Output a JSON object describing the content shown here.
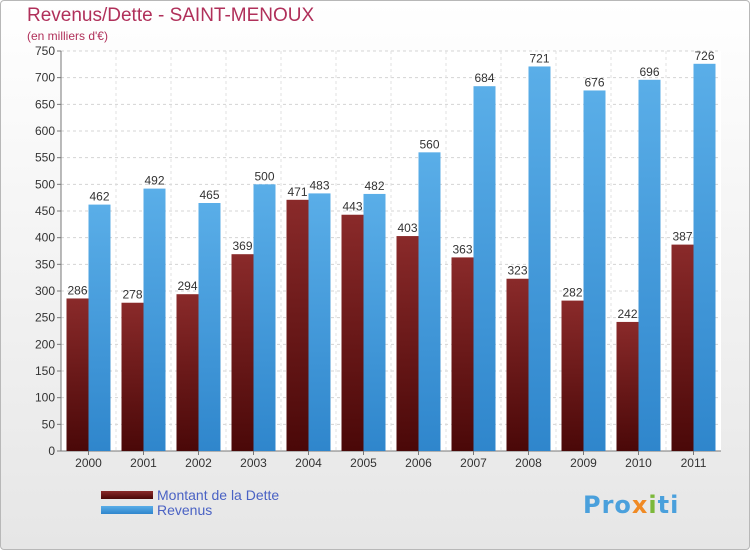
{
  "title": "Revenus/Dette - SAINT-MENOUX",
  "subtitle": "(en milliers d'€)",
  "logo_text": "Proxiti",
  "colors": {
    "dette": "#7a1c1c",
    "revenus": "#3d99e0",
    "title": "#b0305a",
    "legend_text": "#4a62c4"
  },
  "chart_data": {
    "type": "bar",
    "title": "Revenus/Dette - SAINT-MENOUX",
    "ylabel": "(en milliers d'€)",
    "ylim": [
      0,
      750
    ],
    "ytick_step": 50,
    "grid": true,
    "legend_position": "bottom-left",
    "categories": [
      "2000",
      "2001",
      "2002",
      "2003",
      "2004",
      "2005",
      "2006",
      "2007",
      "2008",
      "2009",
      "2010",
      "2011"
    ],
    "series": [
      {
        "name": "Montant de la Dette",
        "values": [
          286,
          278,
          294,
          369,
          471,
          443,
          403,
          363,
          323,
          282,
          242,
          387
        ]
      },
      {
        "name": "Revenus",
        "values": [
          462,
          492,
          465,
          500,
          483,
          482,
          560,
          684,
          721,
          676,
          696,
          726
        ]
      }
    ]
  }
}
